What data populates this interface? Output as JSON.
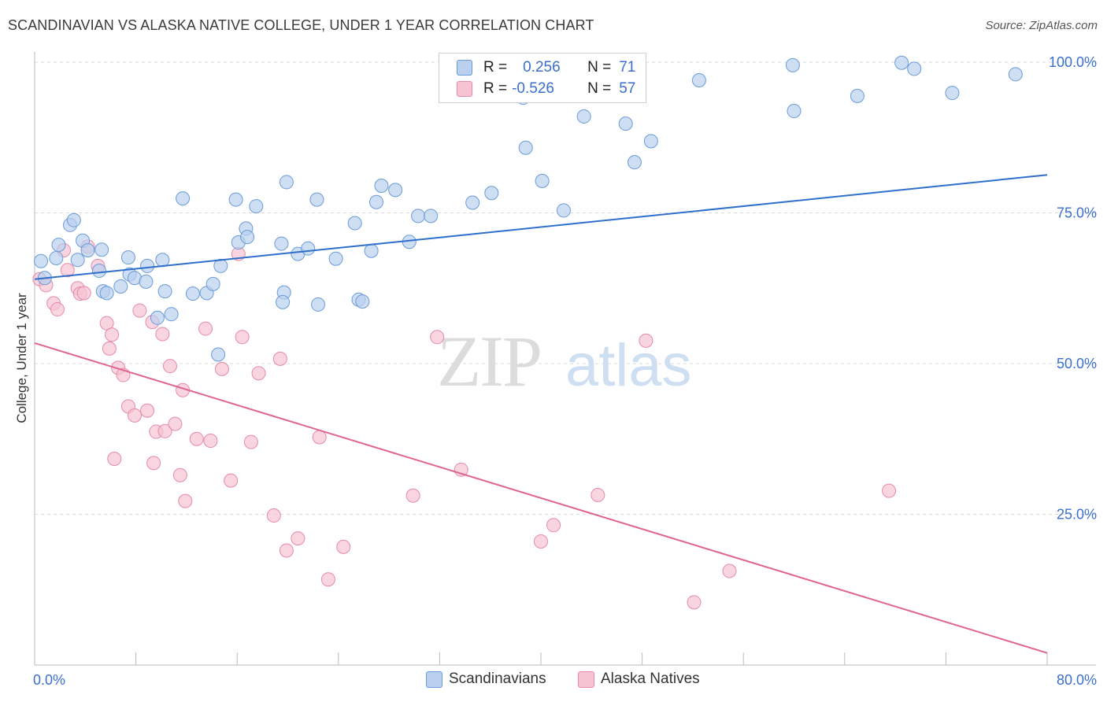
{
  "header": {
    "title": "SCANDINAVIAN VS ALASKA NATIVE COLLEGE, UNDER 1 YEAR CORRELATION CHART",
    "source": "Source: ZipAtlas.com"
  },
  "watermark": {
    "zip": "ZIP",
    "atlas": "atlas"
  },
  "legend": {
    "rows": [
      {
        "r_label": "R =",
        "r_value": "0.256",
        "n_label": "N =",
        "n_value": "71"
      },
      {
        "r_label": "R =",
        "r_value": "-0.526",
        "n_label": "N =",
        "n_value": "57"
      }
    ]
  },
  "bottom_legend": {
    "items": [
      "Scandinavians",
      "Alaska Natives"
    ]
  },
  "colors": {
    "blue_fill": "#b9d0ee",
    "blue_stroke": "#6b9bd8",
    "blue_line": "#2f6fcc",
    "pink_fill": "#f6c3d3",
    "pink_stroke": "#e58aa8",
    "pink_line": "#e0648e",
    "tick_label": "#3a6fcf",
    "grid": "#d9d9d9"
  },
  "chart_data": {
    "type": "scatter",
    "title": "SCANDINAVIAN VS ALASKA NATIVE COLLEGE, UNDER 1 YEAR CORRELATION CHART",
    "xlabel": "",
    "ylabel": "College, Under 1 year",
    "xlim": [
      0,
      80
    ],
    "ylim": [
      0,
      100
    ],
    "x_tick_labels": [
      "0.0%",
      "80.0%"
    ],
    "y_ticks": [
      25,
      50,
      75,
      100
    ],
    "y_tick_labels": [
      "25.0%",
      "50.0%",
      "75.0%",
      "100.0%"
    ],
    "grid": true,
    "legend_position": "top-center",
    "series": [
      {
        "name": "Scandinavians",
        "R": 0.256,
        "N": 71,
        "trend": [
          [
            0,
            64.0
          ],
          [
            80,
            81.3
          ]
        ],
        "points": [
          [
            0.5,
            67
          ],
          [
            0.8,
            64.2
          ],
          [
            1.7,
            67.5
          ],
          [
            1.9,
            69.7
          ],
          [
            2.8,
            73.0
          ],
          [
            3.1,
            73.8
          ],
          [
            3.4,
            67.2
          ],
          [
            3.8,
            70.4
          ],
          [
            4.2,
            68.8
          ],
          [
            5.4,
            62.0
          ],
          [
            5.7,
            61.7
          ],
          [
            5.3,
            68.9
          ],
          [
            6.8,
            62.8
          ],
          [
            5.1,
            65.4
          ],
          [
            7.5,
            64.8
          ],
          [
            7.4,
            67.6
          ],
          [
            7.9,
            64.2
          ],
          [
            8.8,
            63.6
          ],
          [
            8.9,
            66.2
          ],
          [
            9.7,
            57.6
          ],
          [
            10.3,
            62.0
          ],
          [
            10.8,
            58.2
          ],
          [
            10.1,
            67.2
          ],
          [
            11.7,
            77.4
          ],
          [
            12.5,
            61.6
          ],
          [
            13.6,
            61.7
          ],
          [
            14.1,
            63.2
          ],
          [
            14.5,
            51.5
          ],
          [
            14.7,
            66.2
          ],
          [
            16.1,
            70.1
          ],
          [
            16.7,
            72.4
          ],
          [
            16.8,
            71.0
          ],
          [
            15.9,
            77.2
          ],
          [
            17.5,
            76.1
          ],
          [
            19.5,
            69.9
          ],
          [
            19.7,
            61.8
          ],
          [
            19.9,
            80.1
          ],
          [
            19.6,
            60.2
          ],
          [
            20.8,
            68.2
          ],
          [
            21.6,
            69.1
          ],
          [
            22.3,
            77.2
          ],
          [
            22.4,
            59.8
          ],
          [
            23.8,
            67.4
          ],
          [
            25.3,
            73.3
          ],
          [
            25.6,
            60.6
          ],
          [
            25.9,
            60.3
          ],
          [
            26.6,
            68.7
          ],
          [
            27.0,
            76.8
          ],
          [
            27.4,
            79.5
          ],
          [
            28.5,
            78.8
          ],
          [
            29.6,
            70.2
          ],
          [
            30.3,
            74.5
          ],
          [
            31.3,
            74.5
          ],
          [
            34.6,
            76.7
          ],
          [
            36.1,
            78.3
          ],
          [
            38.6,
            94.1
          ],
          [
            38.8,
            85.8
          ],
          [
            40.1,
            80.3
          ],
          [
            41.8,
            75.4
          ],
          [
            43.4,
            91.0
          ],
          [
            46.7,
            89.8
          ],
          [
            47.4,
            83.4
          ],
          [
            48.7,
            86.9
          ],
          [
            52.5,
            97.0
          ],
          [
            59.9,
            99.5
          ],
          [
            60.0,
            91.9
          ],
          [
            65.0,
            94.4
          ],
          [
            68.5,
            99.9
          ],
          [
            69.5,
            98.9
          ],
          [
            72.5,
            94.9
          ],
          [
            77.5,
            98.0
          ]
        ]
      },
      {
        "name": "Alaska Natives",
        "R": -0.526,
        "N": 57,
        "trend": [
          [
            0,
            53.4
          ],
          [
            80,
            2.0
          ]
        ],
        "points": [
          [
            0.4,
            64.0
          ],
          [
            0.9,
            63.0
          ],
          [
            1.5,
            60.0
          ],
          [
            1.8,
            59.0
          ],
          [
            2.3,
            68.8
          ],
          [
            2.6,
            65.5
          ],
          [
            3.4,
            62.5
          ],
          [
            3.6,
            61.6
          ],
          [
            3.9,
            61.7
          ],
          [
            4.2,
            69.4
          ],
          [
            5.0,
            66.2
          ],
          [
            5.7,
            56.7
          ],
          [
            5.9,
            52.5
          ],
          [
            6.1,
            54.8
          ],
          [
            6.3,
            34.2
          ],
          [
            6.6,
            49.3
          ],
          [
            7.0,
            48.1
          ],
          [
            7.4,
            42.9
          ],
          [
            7.9,
            41.4
          ],
          [
            8.3,
            58.8
          ],
          [
            8.9,
            42.2
          ],
          [
            9.3,
            56.9
          ],
          [
            9.4,
            33.5
          ],
          [
            9.6,
            38.7
          ],
          [
            10.1,
            54.9
          ],
          [
            10.3,
            38.8
          ],
          [
            10.7,
            49.6
          ],
          [
            11.1,
            40.0
          ],
          [
            11.5,
            31.5
          ],
          [
            11.7,
            45.6
          ],
          [
            11.9,
            27.2
          ],
          [
            12.8,
            37.5
          ],
          [
            13.5,
            55.8
          ],
          [
            13.9,
            37.2
          ],
          [
            14.8,
            49.1
          ],
          [
            15.5,
            30.6
          ],
          [
            16.1,
            68.2
          ],
          [
            16.4,
            54.4
          ],
          [
            17.1,
            37.0
          ],
          [
            17.7,
            48.4
          ],
          [
            18.9,
            24.8
          ],
          [
            19.4,
            50.8
          ],
          [
            19.9,
            19.0
          ],
          [
            20.8,
            21.0
          ],
          [
            22.5,
            37.8
          ],
          [
            23.2,
            14.2
          ],
          [
            24.4,
            19.6
          ],
          [
            29.9,
            28.1
          ],
          [
            31.8,
            54.4
          ],
          [
            33.7,
            32.4
          ],
          [
            40.0,
            20.5
          ],
          [
            41.0,
            23.2
          ],
          [
            44.5,
            28.2
          ],
          [
            48.3,
            53.8
          ],
          [
            52.1,
            10.4
          ],
          [
            54.9,
            15.6
          ],
          [
            67.5,
            28.9
          ]
        ]
      }
    ]
  }
}
